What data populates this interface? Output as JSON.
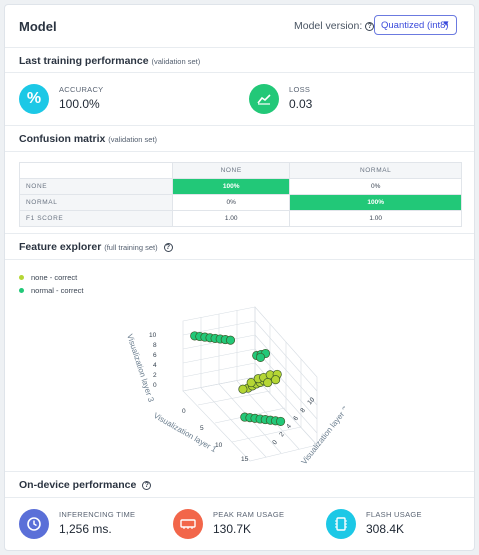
{
  "header": {
    "title": "Model",
    "version_label": "Model version:",
    "version_value": "Quantized (int8)",
    "help_glyph": "?"
  },
  "training": {
    "title": "Last training performance",
    "note": "(validation set)",
    "accuracy": {
      "label": "ACCURACY",
      "value": "100.0%",
      "icon": "percent-icon",
      "color": "#1cc8e6"
    },
    "loss": {
      "label": "LOSS",
      "value": "0.03",
      "icon": "chart-line-icon",
      "color": "#22c878"
    }
  },
  "confusion": {
    "title": "Confusion matrix",
    "note": "(validation set)",
    "columns": [
      "NONE",
      "NORMAL"
    ],
    "rows": [
      {
        "label": "NONE",
        "cells": [
          "100%",
          "0%"
        ]
      },
      {
        "label": "NORMAL",
        "cells": [
          "0%",
          "100%"
        ]
      },
      {
        "label": "F1 SCORE",
        "cells": [
          "1.00",
          "1.00"
        ]
      }
    ],
    "highlight_color": "#22c878"
  },
  "features": {
    "title": "Feature explorer",
    "note": "(full training set)",
    "legend": [
      {
        "label": "none - correct",
        "color": "#b5d635"
      },
      {
        "label": "normal - correct",
        "color": "#22c878"
      }
    ]
  },
  "chart_data": {
    "type": "scatter",
    "title": "",
    "axes": {
      "x": {
        "label": "Visualization layer 1",
        "ticks": [
          "0",
          "5",
          "10",
          "15"
        ]
      },
      "y": {
        "label": "Visualization layer 2",
        "ticks": [
          "0",
          "2",
          "4",
          "6",
          "8",
          "10"
        ]
      },
      "z": {
        "label": "Visualization layer 3",
        "ticks": [
          "0",
          "2",
          "4",
          "6",
          "8",
          "10"
        ]
      }
    },
    "series": [
      {
        "name": "none - correct",
        "color": "#b5d635",
        "points": [
          [
            6.5,
            5.0,
            4.5
          ],
          [
            7.0,
            5.3,
            5.2
          ],
          [
            7.4,
            5.6,
            5.8
          ],
          [
            7.8,
            5.9,
            6.3
          ],
          [
            8.2,
            6.2,
            6.8
          ],
          [
            8.6,
            6.5,
            7.3
          ],
          [
            9.0,
            6.8,
            7.8
          ],
          [
            9.4,
            7.1,
            8.3
          ],
          [
            6.0,
            4.6,
            4.0
          ],
          [
            7.2,
            5.0,
            6.0
          ],
          [
            7.8,
            5.6,
            7.0
          ],
          [
            8.4,
            6.0,
            7.6
          ],
          [
            9.2,
            6.4,
            8.6
          ],
          [
            9.8,
            7.0,
            9.0
          ],
          [
            8.8,
            7.4,
            7.2
          ],
          [
            8.0,
            6.8,
            6.2
          ]
        ]
      },
      {
        "name": "normal - correct",
        "color": "#22c878",
        "points": [
          [
            1.0,
            1.0,
            10.0
          ],
          [
            1.5,
            1.4,
            10.2
          ],
          [
            2.0,
            1.8,
            10.4
          ],
          [
            2.5,
            2.2,
            10.6
          ],
          [
            3.0,
            2.6,
            10.8
          ],
          [
            3.5,
            3.0,
            11.0
          ],
          [
            4.0,
            3.4,
            11.2
          ],
          [
            4.5,
            3.8,
            11.4
          ],
          [
            9.0,
            3.0,
            2.0
          ],
          [
            9.5,
            3.4,
            2.2
          ],
          [
            10.0,
            3.8,
            2.4
          ],
          [
            10.5,
            4.2,
            2.6
          ],
          [
            11.0,
            4.6,
            2.8
          ],
          [
            11.5,
            5.0,
            3.0
          ],
          [
            12.0,
            5.4,
            3.2
          ],
          [
            12.5,
            5.8,
            3.4
          ],
          [
            6.5,
            6.2,
            9.8
          ],
          [
            7.0,
            6.5,
            10.3
          ],
          [
            7.5,
            6.8,
            10.8
          ],
          [
            7.2,
            6.3,
            10.0
          ]
        ]
      }
    ]
  },
  "ondevice": {
    "title": "On-device performance",
    "inferencing": {
      "label": "INFERENCING TIME",
      "value": "1,256 ms.",
      "icon": "clock-icon",
      "color": "#5a6fd8"
    },
    "ram": {
      "label": "PEAK RAM USAGE",
      "value": "130.7K",
      "icon": "memory-icon",
      "color": "#f2664a"
    },
    "flash": {
      "label": "FLASH USAGE",
      "value": "308.4K",
      "icon": "chip-icon",
      "color": "#1cc8e6"
    }
  }
}
